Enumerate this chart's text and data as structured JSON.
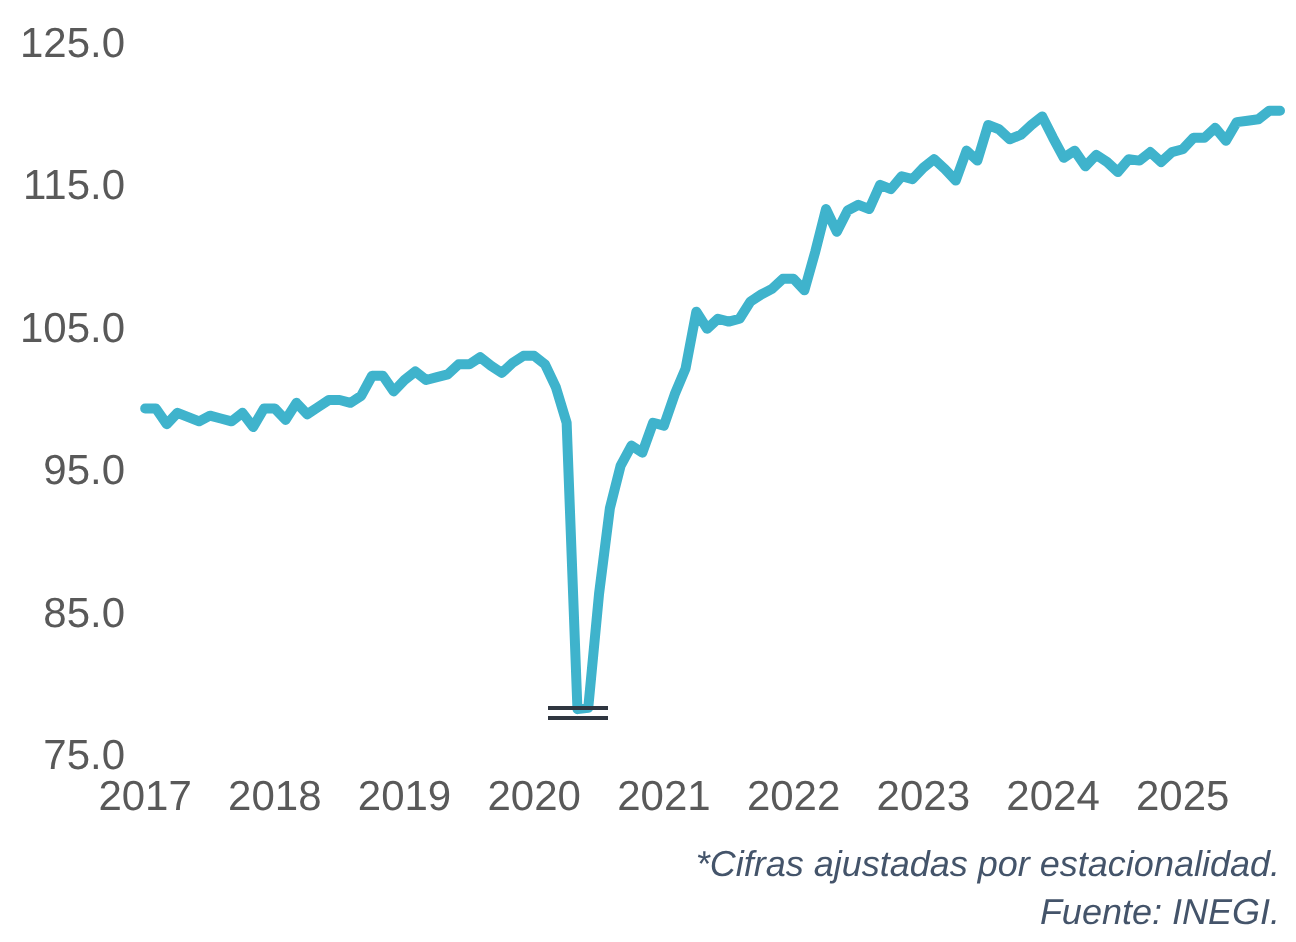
{
  "chart_data": {
    "type": "line",
    "categories": [
      "2017",
      null,
      null,
      null,
      null,
      null,
      null,
      null,
      null,
      null,
      null,
      null,
      "2018",
      null,
      null,
      null,
      null,
      null,
      null,
      null,
      null,
      null,
      null,
      null,
      "2019",
      null,
      null,
      null,
      null,
      null,
      null,
      null,
      null,
      null,
      null,
      null,
      "2020",
      null,
      null,
      null,
      null,
      null,
      null,
      null,
      null,
      null,
      null,
      null,
      "2021",
      null,
      null,
      null,
      null,
      null,
      null,
      null,
      null,
      null,
      null,
      null,
      "2022",
      null,
      null,
      null,
      null,
      null,
      null,
      null,
      null,
      null,
      null,
      null,
      "2023",
      null,
      null,
      null,
      null,
      null,
      null,
      null,
      null,
      null,
      null,
      null,
      "2024",
      null,
      null,
      null,
      null,
      null,
      null,
      null,
      null,
      null,
      null,
      null,
      "2025",
      null,
      null,
      null,
      null,
      null,
      null,
      null,
      null,
      null
    ],
    "series": [
      {
        "color": "#3fb3cc",
        "values": [
          99.5,
          99.5,
          98.4,
          99.2,
          98.9,
          98.6,
          99.0,
          98.8,
          98.6,
          99.2,
          98.2,
          99.5,
          99.5,
          98.7,
          99.9,
          99.1,
          99.6,
          100.1,
          100.1,
          99.9,
          100.4,
          101.8,
          101.8,
          100.7,
          101.5,
          102.1,
          101.5,
          101.7,
          101.9,
          102.6,
          102.6,
          103.1,
          102.5,
          102.0,
          102.7,
          103.2,
          103.2,
          102.6,
          101.0,
          98.5,
          78.4,
          78.5,
          86.5,
          92.5,
          95.5,
          96.9,
          96.4,
          98.5,
          98.3,
          100.5,
          102.3,
          106.3,
          105.1,
          105.8,
          105.6,
          105.8,
          107.0,
          107.5,
          107.9,
          108.6,
          108.6,
          107.8,
          110.5,
          113.5,
          111.9,
          113.4,
          113.8,
          113.5,
          115.2,
          114.9,
          115.8,
          115.6,
          116.4,
          117.0,
          116.3,
          115.5,
          117.6,
          116.9,
          119.4,
          119.1,
          118.4,
          118.7,
          119.4,
          120.0,
          118.5,
          117.1,
          117.6,
          116.5,
          117.3,
          116.8,
          116.1,
          117.0,
          116.9,
          117.5,
          116.8,
          117.5,
          117.7,
          118.5,
          118.5,
          119.2,
          118.3,
          119.6,
          119.7,
          119.8,
          120.4,
          120.4
        ]
      }
    ],
    "ylim": [
      75,
      125
    ],
    "yticks": [
      {
        "value": 75,
        "label": "75.0"
      },
      {
        "value": 85,
        "label": "85.0"
      },
      {
        "value": 95,
        "label": "95.0"
      },
      {
        "value": 105,
        "label": "105.0"
      },
      {
        "value": 115,
        "label": "115.0"
      },
      {
        "value": 125,
        "label": "125.0"
      }
    ],
    "grid": false,
    "legend": false,
    "marker": "none",
    "line_style": "solid",
    "annotations": [
      "*Cifras ajustadas por estacionalidad.",
      "Fuente: INEGI."
    ]
  }
}
